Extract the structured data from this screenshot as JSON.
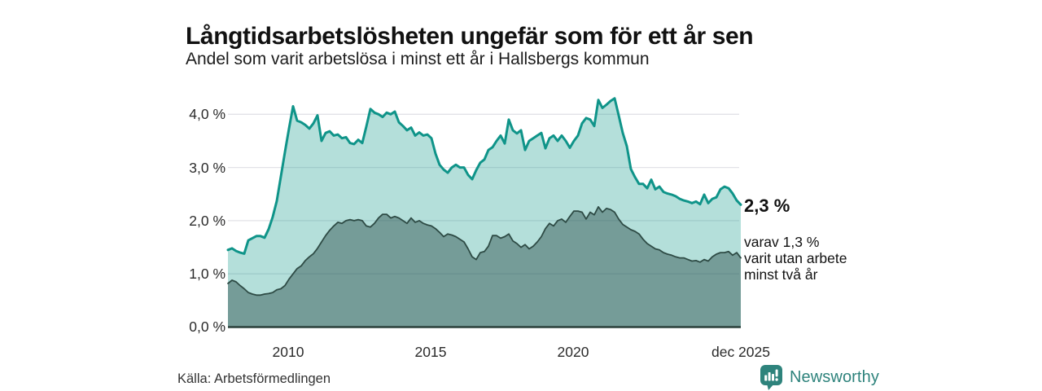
{
  "header": {
    "title": "Långtidsarbetslösheten ungefär som för ett år sen",
    "subtitle": "Andel som varit arbetslösa i minst ett år i Hallsbergs kommun"
  },
  "chart": {
    "y_ticks": [
      "4,0 %",
      "3,0 %",
      "2,0 %",
      "1,0 %",
      "0,0 %"
    ],
    "x_ticks": [
      "2010",
      "2015",
      "2020",
      "dec 2025"
    ],
    "annotation": {
      "value_label": "2,3 %",
      "note_lines": [
        "varav 1,3 %",
        "varit utan arbete",
        "minst två år"
      ]
    }
  },
  "footer": {
    "source": "Källa: Arbetsförmedlingen",
    "brand": "Newsworthy"
  },
  "colors": {
    "total_line": "#0f9489",
    "total_fill": "rgba(23,154,140,0.32)",
    "dark_fill": "rgba(40,75,70,0.45)",
    "dark_line": "#2e4b45",
    "gridline": "#e2e2e7",
    "baseline": "#2b403b",
    "brand": "#2e837c"
  },
  "chart_data": {
    "type": "area",
    "title": "Långtidsarbetslösheten ungefär som för ett år sen",
    "subtitle": "Andel som varit arbetslösa i minst ett år i Hallsbergs kommun",
    "unit": "%",
    "ylim": [
      0,
      4.5
    ],
    "y_ticks_pct": [
      0,
      1,
      2,
      3,
      4
    ],
    "grid": true,
    "x_range": {
      "start_year": 2008,
      "end_label": "dec 2025",
      "tick_years": [
        2010,
        2015,
        2020
      ]
    },
    "source": "Arbetsförmedlingen",
    "series": [
      {
        "name": "Andel arbetslösa minst ett år",
        "latest_label": "2,3 %",
        "latest_value": 2.3,
        "values": [
          1.45,
          1.48,
          1.43,
          1.4,
          1.38,
          1.63,
          1.67,
          1.71,
          1.71,
          1.68,
          1.84,
          2.07,
          2.37,
          2.83,
          3.29,
          3.73,
          4.15,
          3.88,
          3.85,
          3.8,
          3.73,
          3.83,
          3.98,
          3.5,
          3.65,
          3.68,
          3.6,
          3.62,
          3.55,
          3.57,
          3.46,
          3.44,
          3.52,
          3.46,
          3.77,
          4.1,
          4.03,
          4.0,
          3.95,
          4.03,
          4.0,
          4.05,
          3.85,
          3.78,
          3.7,
          3.75,
          3.6,
          3.66,
          3.6,
          3.62,
          3.55,
          3.26,
          3.05,
          2.96,
          2.9,
          3.0,
          3.05,
          3.0,
          3.0,
          2.86,
          2.78,
          2.95,
          3.09,
          3.15,
          3.33,
          3.38,
          3.5,
          3.6,
          3.45,
          3.9,
          3.7,
          3.64,
          3.7,
          3.33,
          3.5,
          3.55,
          3.6,
          3.65,
          3.36,
          3.55,
          3.6,
          3.5,
          3.6,
          3.5,
          3.37,
          3.5,
          3.6,
          3.83,
          3.93,
          3.9,
          3.78,
          4.27,
          4.12,
          4.18,
          4.25,
          4.3,
          3.98,
          3.65,
          3.4,
          2.97,
          2.82,
          2.69,
          2.69,
          2.61,
          2.77,
          2.59,
          2.64,
          2.54,
          2.51,
          2.49,
          2.46,
          2.41,
          2.38,
          2.36,
          2.33,
          2.36,
          2.31,
          2.49,
          2.33,
          2.41,
          2.44,
          2.59,
          2.64,
          2.61,
          2.51,
          2.38,
          2.3
        ]
      },
      {
        "name": "varav utan arbete minst två år",
        "latest_label": "1,3 %",
        "latest_value": 1.3,
        "values": [
          0.82,
          0.88,
          0.85,
          0.78,
          0.72,
          0.65,
          0.62,
          0.6,
          0.6,
          0.62,
          0.63,
          0.65,
          0.7,
          0.72,
          0.78,
          0.9,
          1.0,
          1.1,
          1.15,
          1.25,
          1.32,
          1.38,
          1.48,
          1.6,
          1.72,
          1.82,
          1.9,
          1.97,
          1.95,
          2.0,
          2.02,
          2.0,
          2.02,
          2.0,
          1.9,
          1.88,
          1.95,
          2.05,
          2.12,
          2.12,
          2.05,
          2.08,
          2.05,
          2.0,
          1.95,
          2.05,
          1.97,
          2.0,
          1.95,
          1.92,
          1.9,
          1.85,
          1.78,
          1.7,
          1.75,
          1.73,
          1.7,
          1.65,
          1.6,
          1.47,
          1.32,
          1.27,
          1.4,
          1.42,
          1.52,
          1.72,
          1.72,
          1.67,
          1.7,
          1.75,
          1.62,
          1.57,
          1.5,
          1.55,
          1.47,
          1.52,
          1.6,
          1.7,
          1.85,
          1.95,
          1.9,
          2.0,
          2.03,
          1.97,
          2.08,
          2.18,
          2.18,
          2.16,
          2.03,
          2.16,
          2.11,
          2.26,
          2.16,
          2.23,
          2.21,
          2.16,
          2.03,
          1.93,
          1.88,
          1.83,
          1.8,
          1.75,
          1.65,
          1.57,
          1.52,
          1.47,
          1.45,
          1.4,
          1.37,
          1.35,
          1.32,
          1.3,
          1.3,
          1.27,
          1.24,
          1.25,
          1.22,
          1.27,
          1.24,
          1.32,
          1.37,
          1.4,
          1.4,
          1.42,
          1.35,
          1.4,
          1.3
        ]
      }
    ]
  }
}
